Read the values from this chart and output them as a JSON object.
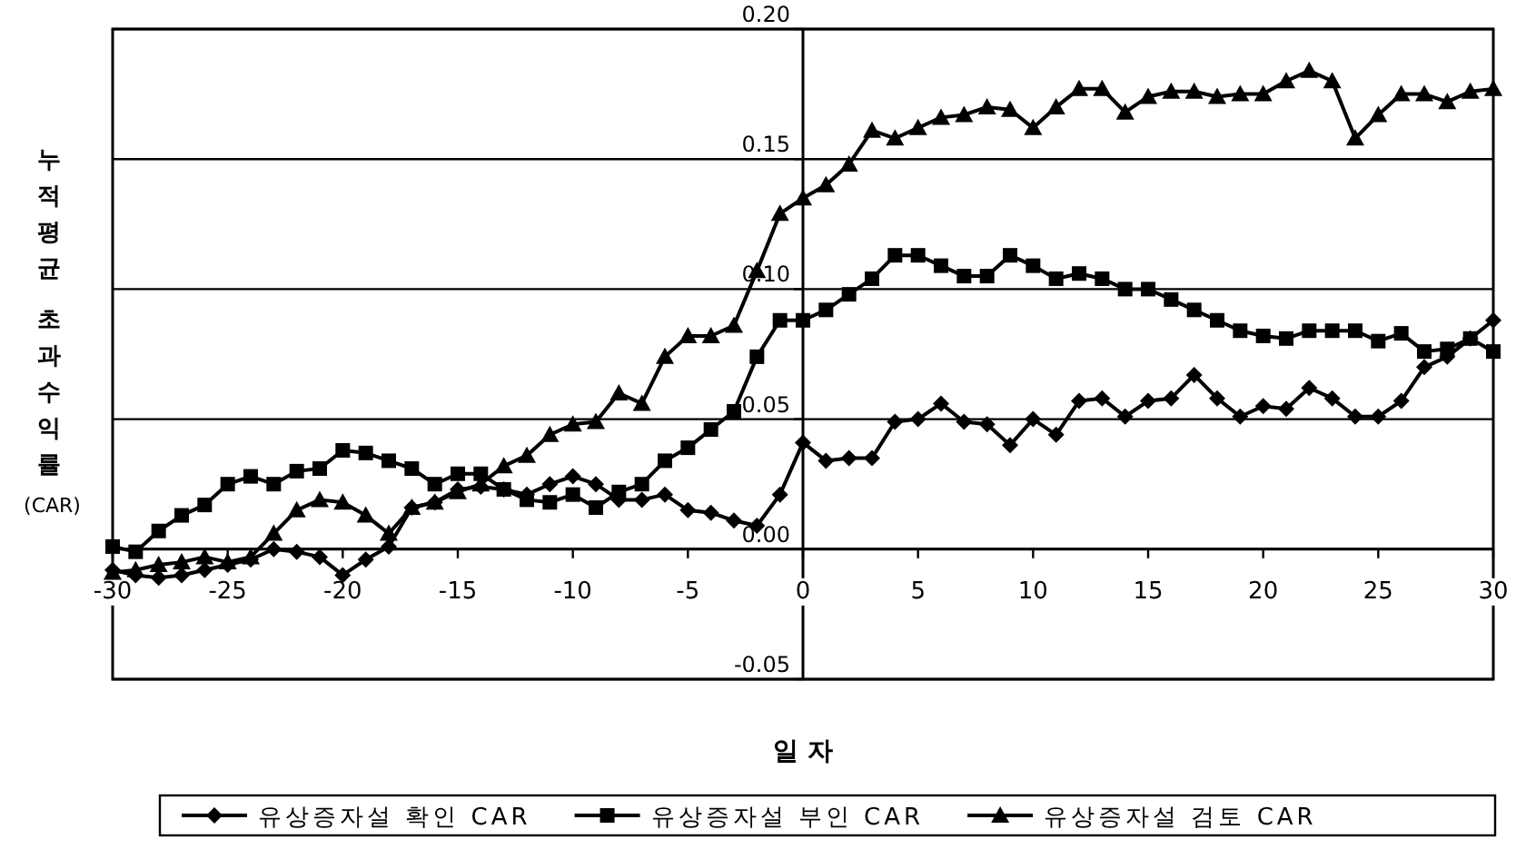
{
  "chart_data": {
    "type": "line",
    "xlabel": "일 자",
    "ylabel": "누적평균 초과수익률 (CAR)",
    "xlim": [
      -30,
      30
    ],
    "ylim": [
      -0.05,
      0.2
    ],
    "xticks": [
      -30,
      -25,
      -20,
      -15,
      -10,
      -5,
      0,
      5,
      10,
      15,
      20,
      25,
      30
    ],
    "yticks": [
      {
        "value": -0.05,
        "label": "-0.05"
      },
      {
        "value": 0,
        "label": "0.00"
      },
      {
        "value": 0.05,
        "label": "0.05"
      },
      {
        "value": 0.1,
        "label": "0.10"
      },
      {
        "value": 0.15,
        "label": "0.15"
      },
      {
        "value": 0.2,
        "label": "0.20"
      }
    ],
    "x": [
      -30,
      -29,
      -28,
      -27,
      -26,
      -25,
      -24,
      -23,
      -22,
      -21,
      -20,
      -19,
      -18,
      -17,
      -16,
      -15,
      -14,
      -13,
      -12,
      -11,
      -10,
      -9,
      -8,
      -7,
      -6,
      -5,
      -4,
      -3,
      -2,
      -1,
      0,
      1,
      2,
      3,
      4,
      5,
      6,
      7,
      8,
      9,
      10,
      11,
      12,
      13,
      14,
      15,
      16,
      17,
      18,
      19,
      20,
      21,
      22,
      23,
      24,
      25,
      26,
      27,
      28,
      29,
      30
    ],
    "grid": "y",
    "legend": "bottom",
    "line_style": "solid",
    "series": [
      {
        "name": "유상증자설 확인 CAR",
        "color": "#000000",
        "marker": "diamond",
        "values": [
          -0.008,
          -0.01,
          -0.011,
          -0.01,
          -0.008,
          -0.006,
          -0.004,
          0.0,
          -0.001,
          -0.003,
          -0.01,
          -0.004,
          0.001,
          0.016,
          0.018,
          0.023,
          0.024,
          0.023,
          0.021,
          0.025,
          0.028,
          0.025,
          0.019,
          0.019,
          0.021,
          0.015,
          0.014,
          0.011,
          0.009,
          0.021,
          0.041,
          0.034,
          0.035,
          0.035,
          0.049,
          0.05,
          0.056,
          0.049,
          0.048,
          0.04,
          0.05,
          0.044,
          0.057,
          0.058,
          0.051,
          0.057,
          0.058,
          0.067,
          0.058,
          0.051,
          0.055,
          0.054,
          0.062,
          0.058,
          0.051,
          0.051,
          0.057,
          0.07,
          0.074,
          0.081,
          0.088
        ]
      },
      {
        "name": "유상증자설 부인 CAR",
        "color": "#000000",
        "marker": "square",
        "values": [
          0.001,
          -0.001,
          0.007,
          0.013,
          0.017,
          0.025,
          0.028,
          0.025,
          0.03,
          0.031,
          0.038,
          0.037,
          0.034,
          0.031,
          0.025,
          0.029,
          0.029,
          0.023,
          0.019,
          0.018,
          0.021,
          0.016,
          0.022,
          0.025,
          0.034,
          0.039,
          0.046,
          0.053,
          0.074,
          0.088,
          0.088,
          0.092,
          0.098,
          0.104,
          0.113,
          0.113,
          0.109,
          0.105,
          0.105,
          0.113,
          0.109,
          0.104,
          0.106,
          0.104,
          0.1,
          0.1,
          0.096,
          0.092,
          0.088,
          0.084,
          0.082,
          0.081,
          0.084,
          0.084,
          0.084,
          0.08,
          0.083,
          0.076,
          0.077,
          0.081,
          0.076
        ]
      },
      {
        "name": "유상증자설 검토 CAR",
        "color": "#000000",
        "marker": "triangle",
        "values": [
          -0.009,
          -0.008,
          -0.006,
          -0.005,
          -0.003,
          -0.005,
          -0.003,
          0.006,
          0.015,
          0.019,
          0.018,
          0.013,
          0.006,
          0.016,
          0.018,
          0.022,
          0.025,
          0.032,
          0.036,
          0.044,
          0.048,
          0.049,
          0.06,
          0.056,
          0.074,
          0.082,
          0.082,
          0.086,
          0.107,
          0.129,
          0.135,
          0.14,
          0.148,
          0.161,
          0.158,
          0.162,
          0.166,
          0.167,
          0.17,
          0.169,
          0.162,
          0.17,
          0.177,
          0.177,
          0.168,
          0.174,
          0.176,
          0.176,
          0.174,
          0.175,
          0.175,
          0.18,
          0.184,
          0.18,
          0.158,
          0.167,
          0.175,
          0.175,
          0.172,
          0.176,
          0.177
        ]
      }
    ]
  }
}
